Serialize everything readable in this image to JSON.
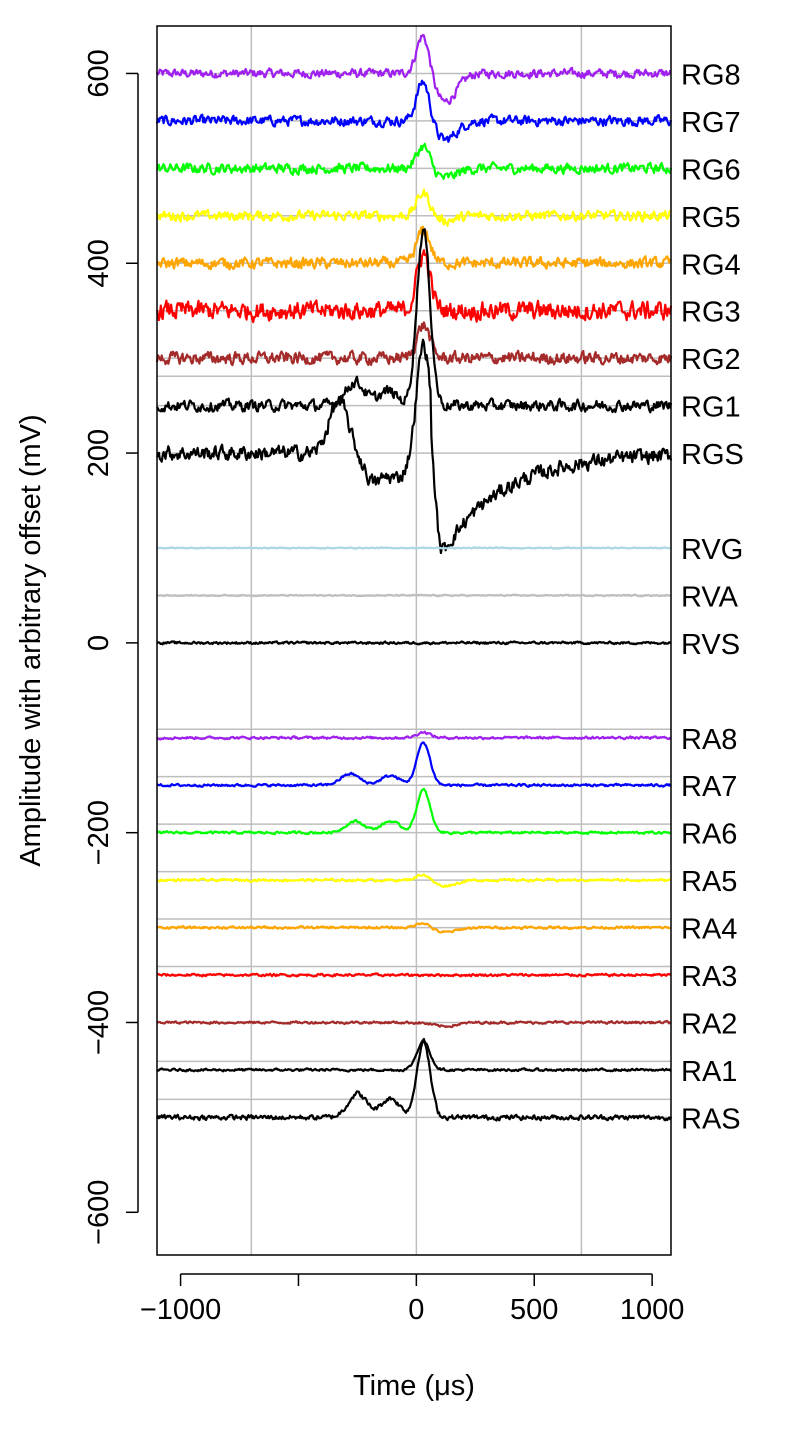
{
  "chart_data": {
    "type": "line",
    "xlabel": "Time (μs)",
    "ylabel": "Amplitude with arbitrary offset (mV)",
    "xlim": [
      -1100,
      1080
    ],
    "ylim": [
      -645,
      650
    ],
    "x_ticks": [
      -1000,
      -500,
      0,
      500,
      1000
    ],
    "x_tick_labels": [
      "−1000",
      "",
      "0",
      "500",
      "1000"
    ],
    "y_ticks": [
      -600,
      -400,
      -200,
      0,
      200,
      400,
      600
    ],
    "y_tick_labels": [
      "−600",
      "−400",
      "−200",
      "0",
      "200",
      "400",
      "600"
    ],
    "vertical_grid_x": [
      -700,
      0,
      700
    ],
    "extra_grid_y": [
      281,
      -91,
      -141,
      -191,
      -241,
      -291,
      -341,
      -441,
      -481
    ],
    "grid": true,
    "legend": "labels at right end of each trace",
    "series": [
      {
        "name": "RG8",
        "offset": 600,
        "color": "#a020f0",
        "noise": 7,
        "peak": 45,
        "neg": -30,
        "events": []
      },
      {
        "name": "RG7",
        "offset": 550,
        "color": "#0000ff",
        "noise": 8,
        "peak": 45,
        "neg": -20,
        "events": []
      },
      {
        "name": "RG6",
        "offset": 500,
        "color": "#00ff00",
        "noise": 8,
        "peak": 25,
        "neg": -10,
        "events": []
      },
      {
        "name": "RG5",
        "offset": 450,
        "color": "#ffff00",
        "noise": 8,
        "peak": 25,
        "neg": -5,
        "events": []
      },
      {
        "name": "RG4",
        "offset": 400,
        "color": "#ffa500",
        "noise": 9,
        "peak": 35,
        "neg": 0,
        "events": []
      },
      {
        "name": "RG3",
        "offset": 350,
        "color": "#ff0000",
        "noise": 15,
        "peak": 60,
        "neg": 0,
        "events": []
      },
      {
        "name": "RG2",
        "offset": 300,
        "color": "#a52a2a",
        "noise": 10,
        "peak": 35,
        "neg": 0,
        "events": []
      },
      {
        "name": "RG1",
        "offset": 250,
        "color": "#000000",
        "noise": 9,
        "peak": 185,
        "neg": 0,
        "events": [
          [
            -260,
            25
          ],
          [
            -120,
            15
          ]
        ]
      },
      {
        "name": "RGS",
        "offset": 200,
        "color": "#000000",
        "noise": 12,
        "peak": 115,
        "neg": -105,
        "events": [
          [
            -330,
            55
          ],
          [
            -180,
            -30
          ],
          [
            -80,
            -25
          ]
        ]
      },
      {
        "name": "RVG",
        "offset": 100,
        "color": "#add8e6",
        "noise": 1,
        "peak": 0,
        "neg": 0,
        "events": []
      },
      {
        "name": "RVA",
        "offset": 50,
        "color": "#bebebe",
        "noise": 1,
        "peak": 0,
        "neg": 0,
        "events": []
      },
      {
        "name": "RVS",
        "offset": 0,
        "color": "#000000",
        "noise": 2,
        "peak": 0,
        "neg": 0,
        "events": []
      },
      {
        "name": "RA8",
        "offset": -100,
        "color": "#a020f0",
        "noise": 2,
        "peak": 6,
        "neg": 0,
        "events": []
      },
      {
        "name": "RA7",
        "offset": -150,
        "color": "#0000ff",
        "noise": 2,
        "peak": 45,
        "neg": 0,
        "events": [
          [
            -280,
            12
          ],
          [
            -110,
            10
          ]
        ]
      },
      {
        "name": "RA6",
        "offset": -200,
        "color": "#00ff00",
        "noise": 2,
        "peak": 45,
        "neg": 0,
        "events": [
          [
            -260,
            12
          ],
          [
            -110,
            12
          ]
        ]
      },
      {
        "name": "RA5",
        "offset": -250,
        "color": "#ffff00",
        "noise": 2,
        "peak": 7,
        "neg": -6,
        "events": []
      },
      {
        "name": "RA4",
        "offset": -300,
        "color": "#ffa500",
        "noise": 2,
        "peak": 6,
        "neg": -5,
        "events": []
      },
      {
        "name": "RA3",
        "offset": -350,
        "color": "#ff0000",
        "noise": 2,
        "peak": 0,
        "neg": 0,
        "events": []
      },
      {
        "name": "RA2",
        "offset": -400,
        "color": "#a52a2a",
        "noise": 2,
        "peak": 0,
        "neg": -4,
        "events": []
      },
      {
        "name": "RA1",
        "offset": -450,
        "color": "#000000",
        "noise": 2,
        "peak": 30,
        "neg": 0,
        "events": []
      },
      {
        "name": "RAS",
        "offset": -500,
        "color": "#000000",
        "noise": 4,
        "peak": 80,
        "neg": 0,
        "events": [
          [
            -250,
            25
          ],
          [
            -110,
            20
          ]
        ]
      }
    ]
  }
}
